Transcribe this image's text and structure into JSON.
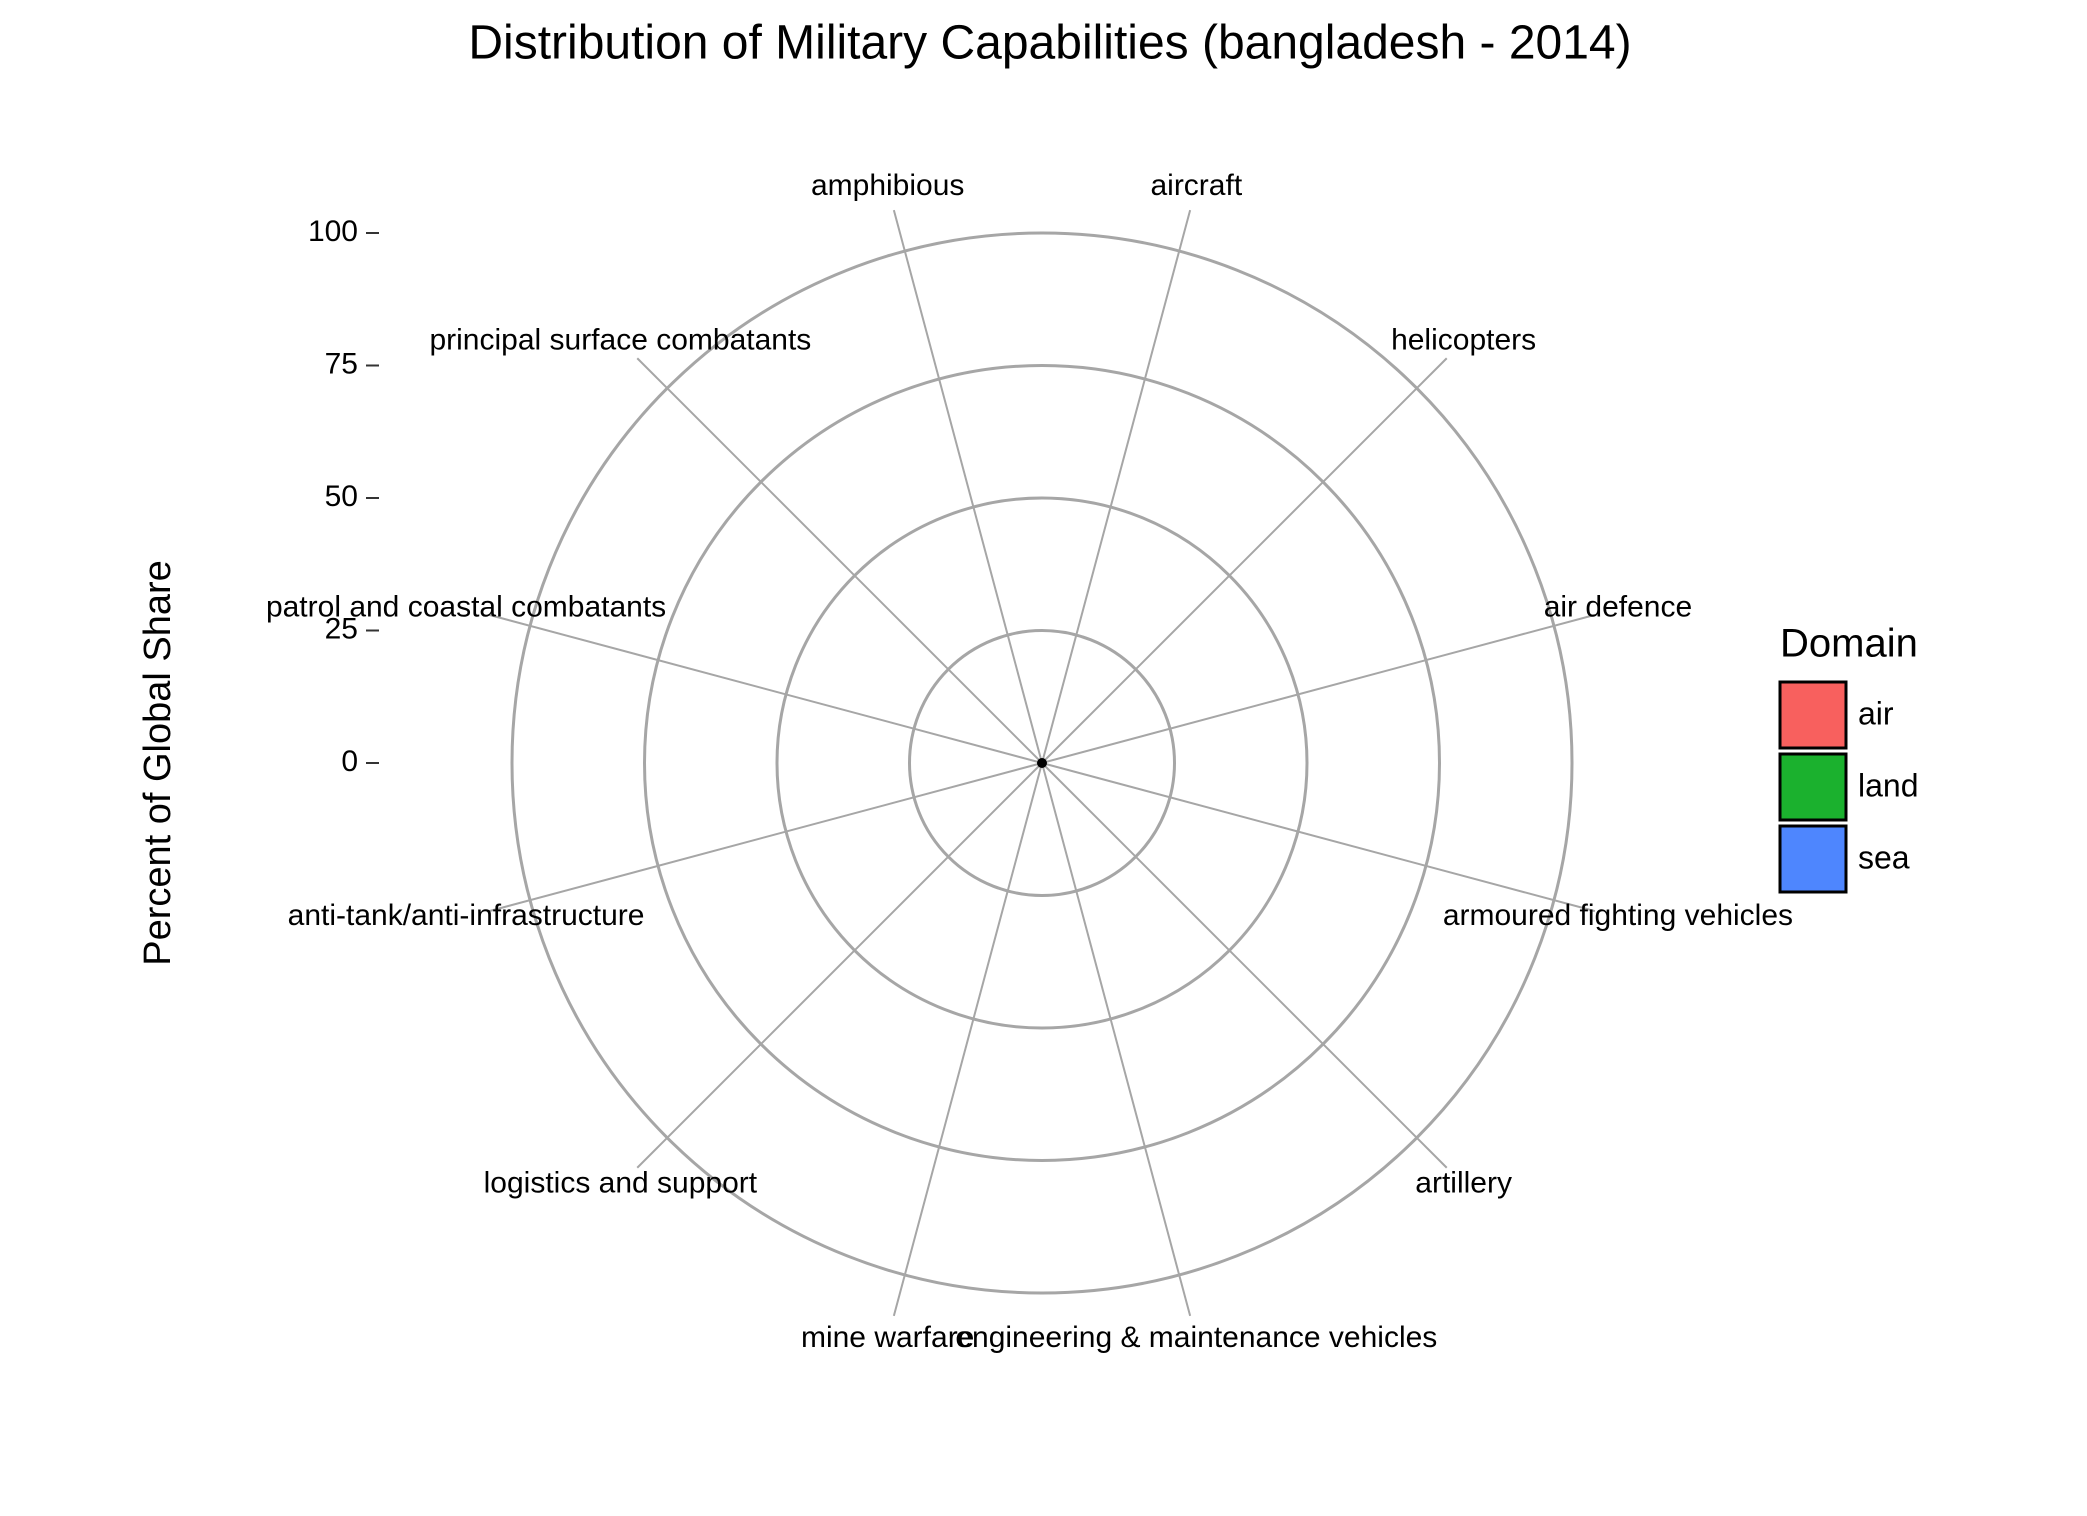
{
  "chart_data": {
    "type": "polar-bar",
    "title": "Distribution of Military Capabilities (bangladesh - 2014)",
    "y_label": "Percent of Global Share",
    "categories": [
      "aircraft",
      "helicopters",
      "air defence",
      "armoured fighting vehicles",
      "artillery",
      "engineering & maintenance vehicles",
      "mine warfare",
      "logistics and support",
      "anti-tank/anti-infrastructure",
      "patrol and coastal combatants",
      "principal surface combatants",
      "amphibious"
    ],
    "values": [
      0,
      0,
      0,
      0,
      0,
      0,
      0,
      0,
      0,
      0,
      0,
      0
    ],
    "ylim": [
      0,
      100
    ],
    "yticks": [
      0,
      25,
      50,
      75,
      100
    ],
    "grid": true,
    "legend": {
      "title": "Domain",
      "position": "right",
      "items": [
        {
          "name": "air",
          "color": "#f8605e"
        },
        {
          "name": "land",
          "color": "#1bb12e"
        },
        {
          "name": "sea",
          "color": "#4e86fe"
        }
      ]
    }
  }
}
